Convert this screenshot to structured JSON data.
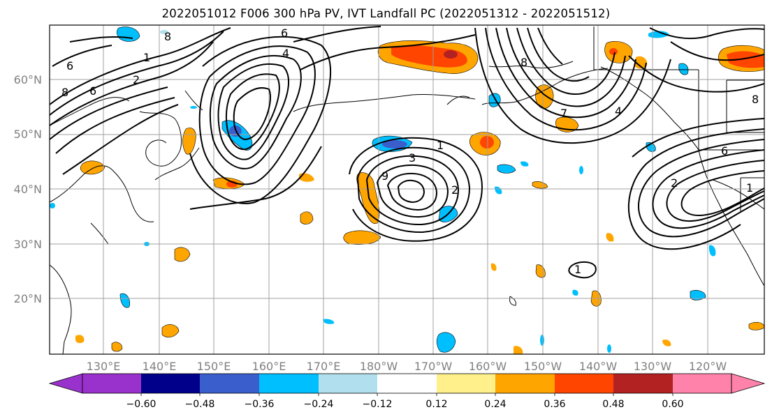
{
  "title": "2022051012 F006 300 hPa PV, IVT Landfall PC (2022051312 - 2022051512)",
  "lat_labels": [
    "60°N",
    "50°N",
    "40°N",
    "30°N",
    "20°N"
  ],
  "lon_labels": [
    "130°E",
    "140°E",
    "150°E",
    "160°E",
    "170°E",
    "180°W",
    "170°W",
    "160°W",
    "150°W",
    "140°W",
    "130°W",
    "120°W"
  ],
  "colorbar": {
    "ticks": [
      "−0.60",
      "−0.48",
      "−0.36",
      "−0.24",
      "−0.12",
      "0.12",
      "0.24",
      "0.36",
      "0.48",
      "0.60"
    ],
    "colors": [
      "#9932cc",
      "#9932cc",
      "#00008b",
      "#3a5fcd",
      "#00bfff",
      "#b2dfee",
      "#ffffff",
      "#fff08c",
      "#ffa500",
      "#ff4500",
      "#b22222",
      "#ff82ab"
    ]
  },
  "contour_labels": [
    "8",
    "6",
    "4",
    "1",
    "2",
    "6",
    "8",
    "6",
    "3",
    "1",
    "2",
    "8",
    "7",
    "4",
    "6",
    "2",
    "1",
    "8",
    "9",
    "1"
  ]
}
